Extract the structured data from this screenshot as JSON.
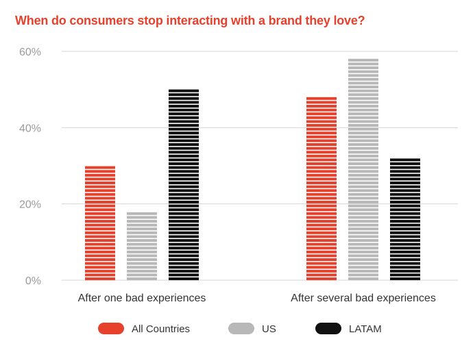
{
  "colors": {
    "title": "#e5412d",
    "grid": "#d6d6d6",
    "all_countries": "#e5412d",
    "us": "#b8b8b8",
    "latam": "#111111"
  },
  "chart_data": {
    "type": "bar",
    "title": "When do consumers stop interacting with a brand they love?",
    "xlabel": "",
    "ylabel": "",
    "categories": [
      "After one bad experiences",
      "After several bad experiences"
    ],
    "series": [
      {
        "name": "All Countries",
        "values": [
          30,
          48
        ]
      },
      {
        "name": "US",
        "values": [
          18,
          58
        ]
      },
      {
        "name": "LATAM",
        "values": [
          50,
          32
        ]
      }
    ],
    "ylim": [
      0,
      60
    ],
    "yticks": [
      0,
      20,
      40,
      60
    ],
    "ytick_labels": [
      "0%",
      "20%",
      "40%",
      "60%"
    ],
    "grid": true,
    "legend_position": "bottom"
  }
}
